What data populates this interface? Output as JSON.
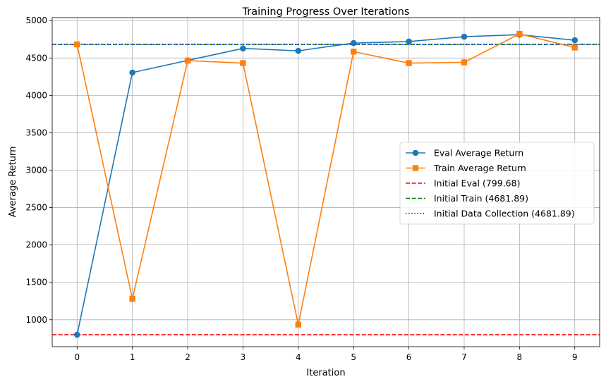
{
  "chart_data": {
    "type": "line",
    "title": "Training Progress Over Iterations",
    "xlabel": "Iteration",
    "ylabel": "Average Return",
    "x": [
      0,
      1,
      2,
      3,
      4,
      5,
      6,
      7,
      8,
      9
    ],
    "xlim": [
      -0.45,
      9.45
    ],
    "ylim": [
      640,
      5040
    ],
    "yticks": [
      1000,
      1500,
      2000,
      2500,
      3000,
      3500,
      4000,
      4500,
      5000
    ],
    "grid": true,
    "legend_position": "center-right",
    "series": [
      {
        "name": "Eval Average Return",
        "color": "#1f77b4",
        "marker": "circle",
        "values": [
          799.68,
          4305,
          4468,
          4628,
          4596,
          4700,
          4720,
          4785,
          4812,
          4738
        ]
      },
      {
        "name": "Train Average Return",
        "color": "#ff7f0e",
        "marker": "square",
        "values": [
          4681.89,
          1280,
          4465,
          4432,
          935,
          4585,
          4432,
          4442,
          4822,
          4640
        ]
      }
    ],
    "reference_lines": [
      {
        "name": "Initial Eval (799.68)",
        "value": 799.68,
        "color": "#ff0000",
        "style": "dashed"
      },
      {
        "name": "Initial Train (4681.89)",
        "value": 4681.89,
        "color": "#008000",
        "style": "dashed"
      },
      {
        "name": "Initial Data Collection (4681.89)",
        "value": 4681.89,
        "color": "#0000ff",
        "style": "dotted"
      }
    ]
  }
}
